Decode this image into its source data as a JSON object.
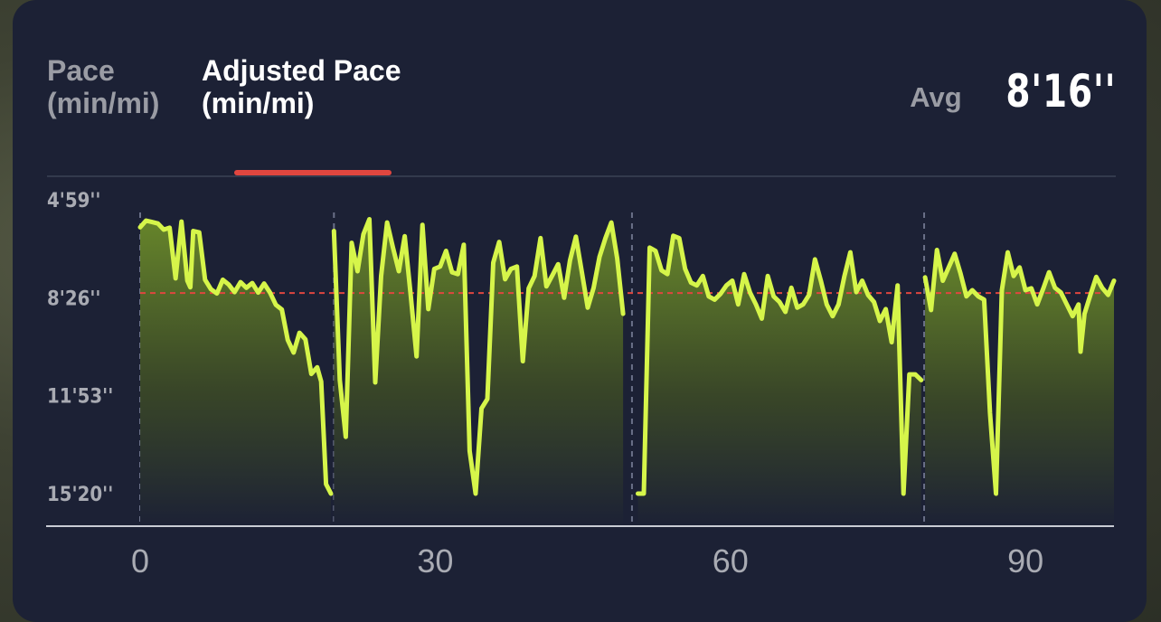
{
  "tabs": [
    {
      "line1": "Pace",
      "line2": "(min/mi)",
      "active": false
    },
    {
      "line1": "Adjusted Pace",
      "line2": "(min/mi)",
      "active": true
    }
  ],
  "summary": {
    "label": "Avg",
    "value": "8'16''"
  },
  "colors": {
    "line": "#d6f54a",
    "average_line": "#e0463f",
    "tab_indicator": "#e0463f",
    "background": "#1c2135"
  },
  "chart_data": {
    "type": "area",
    "xlabel": "",
    "ylabel": "",
    "x_ticks": [
      "0",
      "30",
      "60",
      "90"
    ],
    "y_ticks": [
      "4'59''",
      "8'26''",
      "11'53''",
      "15'20''"
    ],
    "y_tick_values_sec": [
      299,
      506,
      713,
      920
    ],
    "y_axis_inverted": true,
    "xlim": [
      0,
      99
    ],
    "ylim_sec": [
      920,
      299
    ],
    "average_sec": 496,
    "average_label": "8'16''",
    "segment_breaks_x": [
      0,
      19.7,
      50,
      79.7
    ],
    "segments": [
      {
        "x": [
          0.0,
          0.6,
          1.2,
          1.8,
          2.4,
          3.0,
          3.6,
          4.2,
          4.8,
          5.1,
          5.4,
          6.0,
          6.6,
          7.2,
          7.8,
          8.4,
          9.0,
          9.6,
          10.2,
          10.8,
          11.4,
          12.0,
          12.6,
          13.2,
          13.8,
          14.4,
          15.0,
          15.6,
          16.2,
          16.8,
          17.4,
          18.0,
          18.4,
          18.9,
          19.4
        ],
        "y": [
          357,
          343,
          346,
          349,
          362,
          358,
          465,
          345,
          470,
          484,
          365,
          368,
          468,
          488,
          497,
          468,
          478,
          494,
          473,
          485,
          475,
          495,
          476,
          495,
          521,
          531,
          595,
          622,
          580,
          594,
          667,
          653,
          683,
          900,
          920
        ]
      },
      {
        "x": [
          19.7,
          20.3,
          20.9,
          21.5,
          22.1,
          22.7,
          23.3,
          23.9,
          24.5,
          25.1,
          25.7,
          26.3,
          26.9,
          27.5,
          28.1,
          28.7,
          29.3,
          29.9,
          30.5,
          31.1,
          31.7,
          32.3,
          32.9,
          33.5,
          34.1,
          34.7,
          35.3,
          35.9,
          36.5,
          37.1,
          37.7,
          38.3,
          38.9,
          39.5,
          40.1,
          40.7,
          41.3,
          41.9,
          42.5,
          43.1,
          43.7,
          44.3,
          44.9,
          45.5,
          46.1,
          46.7,
          47.3,
          47.9,
          48.5,
          49.1
        ],
        "y": [
          365,
          680,
          800,
          390,
          450,
          372,
          340,
          685,
          460,
          347,
          400,
          450,
          376,
          500,
          630,
          352,
          530,
          445,
          440,
          407,
          452,
          456,
          394,
          830,
          920,
          740,
          720,
          432,
          388,
          467,
          445,
          440,
          640,
          486,
          460,
          380,
          482,
          459,
          435,
          506,
          427,
          377,
          452,
          527,
          485,
          420,
          380,
          347,
          423,
          540
        ]
      },
      {
        "x": [
          50.6,
          51.2,
          51.8,
          52.4,
          53.0,
          53.6,
          54.2,
          54.8,
          55.4,
          56.0,
          56.6,
          57.2,
          57.8,
          58.4,
          59.0,
          59.6,
          60.2,
          60.8,
          61.4,
          62.0,
          62.6,
          63.2,
          63.8,
          64.4,
          65.0,
          65.6,
          66.2,
          66.8,
          67.4,
          68.0,
          68.6,
          69.2,
          69.8,
          70.4,
          71.0,
          71.6,
          72.2,
          72.8,
          73.4,
          74.0,
          74.6,
          75.2,
          75.8,
          76.4,
          77.0,
          77.6,
          78.2,
          78.8,
          79.4
        ],
        "y": [
          920,
          920,
          400,
          407,
          448,
          456,
          375,
          380,
          445,
          474,
          480,
          460,
          503,
          510,
          498,
          480,
          470,
          520,
          456,
          495,
          520,
          550,
          460,
          503,
          515,
          536,
          485,
          527,
          520,
          500,
          425,
          470,
          520,
          545,
          520,
          460,
          410,
          494,
          470,
          500,
          515,
          555,
          530,
          600,
          480,
          920,
          668,
          668,
          680
        ]
      },
      {
        "x": [
          79.8,
          80.4,
          81.0,
          81.6,
          82.2,
          82.8,
          83.4,
          84.0,
          84.6,
          85.2,
          85.8,
          86.4,
          87.0,
          87.6,
          88.2,
          88.8,
          89.4,
          90.0,
          90.6,
          91.2,
          91.8,
          92.4,
          93.0,
          93.6,
          94.2,
          94.8,
          95.4,
          95.6,
          96.0,
          96.6,
          97.2,
          97.8,
          98.4,
          99.0
        ],
        "y": [
          463,
          532,
          405,
          470,
          442,
          413,
          455,
          503,
          490,
          503,
          510,
          750,
          920,
          490,
          410,
          460,
          442,
          490,
          486,
          520,
          487,
          452,
          485,
          495,
          520,
          545,
          520,
          620,
          540,
          500,
          462,
          485,
          500,
          470
        ]
      }
    ]
  }
}
